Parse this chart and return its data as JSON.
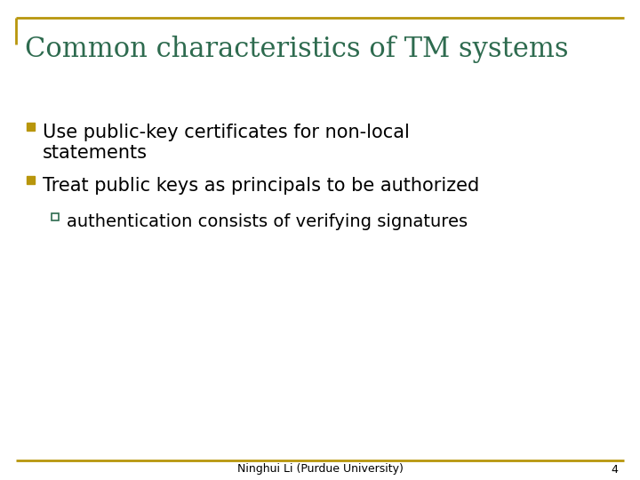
{
  "title": "Common characteristics of TM systems",
  "title_color": "#2E6B4F",
  "title_fontsize": 22,
  "background_color": "#FFFFFF",
  "border_color": "#B8960C",
  "bullet_color": "#B8960C",
  "sub_bullet_color": "#2E6B4F",
  "text_color": "#000000",
  "bullet1_line1": "Use public-key certificates for non-local",
  "bullet1_line2": "statements",
  "bullet2": "Treat public keys as principals to be authorized",
  "sub_bullet": "authentication consists of verifying signatures",
  "footer_text": "Ninghui Li (Purdue University)",
  "footer_page": "4",
  "footer_color": "#000000",
  "footer_fontsize": 9,
  "text_fontsize": 15,
  "sub_fontsize": 14
}
